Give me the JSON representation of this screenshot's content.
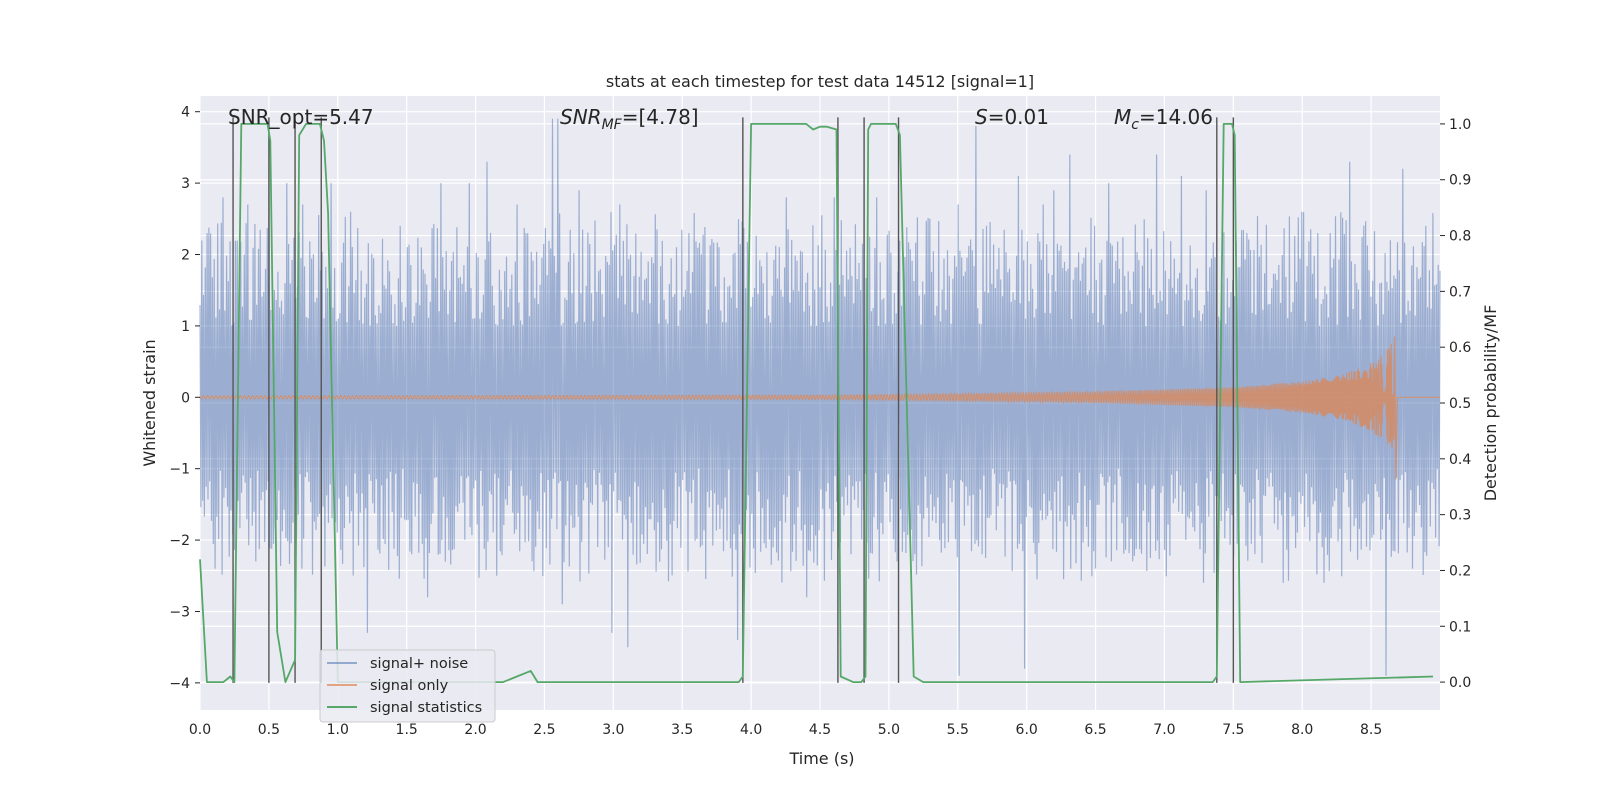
{
  "chart_data": {
    "type": "line",
    "title": "stats at each timestep for test data 14512 [signal=1]",
    "xlabel": "Time (s)",
    "ylabel_left": "Whitened strain",
    "ylabel_right": "Detection probability/MF",
    "xlim": [
      0.0,
      9.0
    ],
    "ylim_left": [
      -4.38,
      4.22
    ],
    "ylim_right": [
      -0.05,
      1.05
    ],
    "grid": true,
    "x_ticks": [
      0.0,
      0.5,
      1.0,
      1.5,
      2.0,
      2.5,
      3.0,
      3.5,
      4.0,
      4.5,
      5.0,
      5.5,
      6.0,
      6.5,
      7.0,
      7.5,
      8.0,
      8.5
    ],
    "x_tick_labels": [
      "0.0",
      "0.5",
      "1.0",
      "1.5",
      "2.0",
      "2.5",
      "3.0",
      "3.5",
      "4.0",
      "4.5",
      "5.0",
      "5.5",
      "6.0",
      "6.5",
      "7.0",
      "7.5",
      "8.0",
      "8.5"
    ],
    "y_left_ticks": [
      4,
      3,
      2,
      1,
      0,
      -1,
      -2,
      -3,
      -4
    ],
    "y_left_tick_labels": [
      "4",
      "3",
      "2",
      "1",
      "0",
      "−1",
      "−2",
      "−3",
      "−4"
    ],
    "y_right_ticks": [
      1.0,
      0.9,
      0.8,
      0.7,
      0.6,
      0.5,
      0.4,
      0.3,
      0.2,
      0.1,
      0.0
    ],
    "y_right_tick_labels": [
      "1.0",
      "0.9",
      "0.8",
      "0.7",
      "0.6",
      "0.5",
      "0.4",
      "0.3",
      "0.2",
      "0.1",
      "0.0"
    ],
    "annotations": [
      {
        "text": "SNR_opt=5.47",
        "x": 0.2,
        "y": 4.0
      },
      {
        "text": "SNRMF=[4.78]",
        "x": 2.6,
        "y": 4.0
      },
      {
        "text": "S=0.01",
        "x": 5.6,
        "y": 4.0
      },
      {
        "text": "Mc=14.06",
        "x": 6.6,
        "y": 4.0
      }
    ],
    "vertical_lines": [
      0.24,
      0.5,
      0.69,
      0.88,
      3.94,
      4.63,
      4.82,
      5.07,
      7.38,
      7.5
    ],
    "series": [
      {
        "name": "signal+ noise",
        "axis": "left",
        "color": "#4c72b0",
        "description": "whitened strain noise, amplitude roughly within -3.8 to 3.8",
        "peaks": [
          [
            0.05,
            2.3
          ],
          [
            0.17,
            2.8
          ],
          [
            0.35,
            2.7
          ],
          [
            0.5,
            3.3
          ],
          [
            0.63,
            3.0
          ],
          [
            0.75,
            2.7
          ],
          [
            0.96,
            3.0
          ],
          [
            1.1,
            2.6
          ],
          [
            1.45,
            2.4
          ],
          [
            1.75,
            3.0
          ],
          [
            1.96,
            3.0
          ],
          [
            2.08,
            3.3
          ],
          [
            2.31,
            2.7
          ],
          [
            2.56,
            3.9
          ],
          [
            2.6,
            3.9
          ],
          [
            2.75,
            2.9
          ],
          [
            3.05,
            2.7
          ],
          [
            3.55,
            2.3
          ],
          [
            4.26,
            2.8
          ],
          [
            4.6,
            2.8
          ],
          [
            4.91,
            2.8
          ],
          [
            5.3,
            2.5
          ],
          [
            5.5,
            2.7
          ],
          [
            5.63,
            3.8
          ],
          [
            5.94,
            3.1
          ],
          [
            6.12,
            2.7
          ],
          [
            6.2,
            2.9
          ],
          [
            6.31,
            3.4
          ],
          [
            6.6,
            3.0
          ],
          [
            6.95,
            3.4
          ],
          [
            7.12,
            3.1
          ],
          [
            7.31,
            2.9
          ],
          [
            7.6,
            2.3
          ],
          [
            8.0,
            2.6
          ],
          [
            8.35,
            3.3
          ],
          [
            8.73,
            3.2
          ],
          [
            8.9,
            2.4
          ]
        ],
        "troughs": [
          [
            0.1,
            -2.4
          ],
          [
            0.4,
            -2.3
          ],
          [
            0.74,
            -2.4
          ],
          [
            1.21,
            -3.3
          ],
          [
            1.65,
            -2.8
          ],
          [
            2.15,
            -2.5
          ],
          [
            2.63,
            -2.9
          ],
          [
            2.98,
            -3.3
          ],
          [
            3.1,
            -3.5
          ],
          [
            3.9,
            -3.4
          ],
          [
            4.4,
            -2.8
          ],
          [
            5.05,
            -2.3
          ],
          [
            5.5,
            -3.9
          ],
          [
            5.98,
            -3.8
          ],
          [
            6.5,
            -2.4
          ],
          [
            7.28,
            -2.6
          ],
          [
            7.86,
            -2.6
          ],
          [
            8.15,
            -2.6
          ],
          [
            8.61,
            -3.9
          ],
          [
            8.8,
            -2.4
          ]
        ]
      },
      {
        "name": "signal only",
        "axis": "left",
        "color": "#dd8452",
        "description": "chirp waveform growing in amplitude toward merger",
        "envelope": [
          [
            0.0,
            0.02
          ],
          [
            4.6,
            0.03
          ],
          [
            5.5,
            0.05
          ],
          [
            6.5,
            0.08
          ],
          [
            7.5,
            0.14
          ],
          [
            8.0,
            0.22
          ],
          [
            8.3,
            0.32
          ],
          [
            8.5,
            0.48
          ],
          [
            8.6,
            0.62
          ],
          [
            8.67,
            0.85
          ]
        ],
        "merger_time": 8.67,
        "post_merger_min": -1.15
      },
      {
        "name": "signal statistics",
        "axis": "right",
        "color": "#55a868",
        "x": [
          0.0,
          0.05,
          0.17,
          0.22,
          0.25,
          0.3,
          0.49,
          0.51,
          0.56,
          0.62,
          0.69,
          0.72,
          0.77,
          0.87,
          0.9,
          0.93,
          1.0,
          2.2,
          2.3,
          2.4,
          2.45,
          3.91,
          3.94,
          4.0,
          4.4,
          4.45,
          4.5,
          4.55,
          4.62,
          4.65,
          4.74,
          4.8,
          4.83,
          4.85,
          4.87,
          4.9,
          5.05,
          5.08,
          5.15,
          5.18,
          5.25,
          7.35,
          7.38,
          7.43,
          7.49,
          7.51,
          7.55,
          8.95
        ],
        "values": [
          0.22,
          0.0,
          0.0,
          0.01,
          0.0,
          1.0,
          1.0,
          0.97,
          0.09,
          0.0,
          0.04,
          0.98,
          1.0,
          1.0,
          0.97,
          0.84,
          0.0,
          0.0,
          0.01,
          0.02,
          0.0,
          0.0,
          0.01,
          1.0,
          1.0,
          0.99,
          0.995,
          0.995,
          0.99,
          0.01,
          0.0,
          0.0,
          0.01,
          0.99,
          1.0,
          1.0,
          1.0,
          0.98,
          0.3,
          0.01,
          0.0,
          0.0,
          0.01,
          1.0,
          1.0,
          0.98,
          0.0,
          0.01
        ]
      }
    ],
    "legend": {
      "placement": "lower-left",
      "entries": [
        "signal+ noise",
        "signal only",
        "signal statistics"
      ]
    }
  }
}
